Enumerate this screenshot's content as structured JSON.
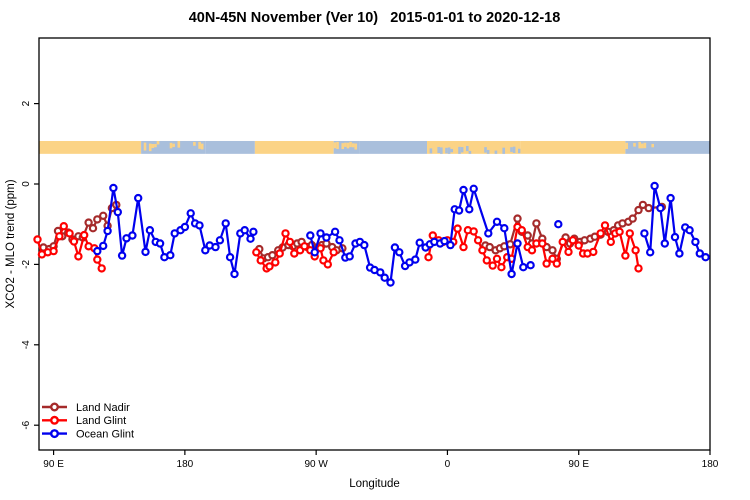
{
  "chart_data": {
    "type": "line",
    "title": "40N-45N November (Ver 10)   2015-01-01 to 2020-12-18",
    "xlabel": "Longitude",
    "ylabel": "XCO2 - MLO trend (ppm)",
    "background": "#ffffff",
    "axis_color": "#000000",
    "grid": false,
    "x_axis": {
      "note": "continuous east longitude, axis wraps: 90E to 180 to 90W to 0 to 90E to 180",
      "range": [
        80,
        540
      ],
      "ticks": [
        90,
        180,
        270,
        360,
        450,
        540
      ],
      "tick_labels": [
        "90 E",
        "180",
        "90 W",
        "0",
        "90 E",
        "180"
      ]
    },
    "y_axis": {
      "range": [
        -6.65,
        3.65
      ],
      "ticks": [
        2,
        0,
        -2,
        -4,
        -6
      ],
      "tick_labels": [
        "2",
        "0",
        "-2",
        "-4",
        "-6"
      ]
    },
    "map_band": {
      "description": "land/ocean strip for 40N-45N drawn near y=+0.9 ppm",
      "value_top": 1.07,
      "value_bottom": 0.75,
      "land_color": "#FBD386",
      "ocean_color": "#A9BFDC",
      "segments": [
        {
          "from": 80,
          "to": 150,
          "type": "land"
        },
        {
          "from": 150,
          "to": 194,
          "type": "coast"
        },
        {
          "from": 194,
          "to": 228,
          "type": "ocean"
        },
        {
          "from": 228,
          "to": 282,
          "type": "land"
        },
        {
          "from": 282,
          "to": 300,
          "type": "coast"
        },
        {
          "from": 300,
          "to": 346,
          "type": "ocean"
        },
        {
          "from": 346,
          "to": 410,
          "type": "coastland"
        },
        {
          "from": 410,
          "to": 482,
          "type": "land"
        },
        {
          "from": 482,
          "to": 504,
          "type": "coast"
        },
        {
          "from": 504,
          "to": 540,
          "type": "ocean"
        }
      ]
    },
    "legend": {
      "position": "bottom-left",
      "entries": [
        {
          "label": "Land Nadir",
          "color": "#A52A2A"
        },
        {
          "label": "Land Glint",
          "color": "#FF0000"
        },
        {
          "label": "Ocean Glint",
          "color": "#0000EE"
        }
      ]
    },
    "series": [
      {
        "name": "Land Nadir",
        "color": "#A52A2A",
        "marker": "open-circle",
        "segments": [
          [
            [
              83,
              -1.58
            ],
            [
              87,
              -1.62
            ],
            [
              90,
              -1.55
            ],
            [
              93,
              -1.17
            ],
            [
              96,
              -1.3
            ],
            [
              100,
              -1.21
            ],
            [
              103,
              -1.38
            ],
            [
              107,
              -1.3
            ],
            [
              110,
              -1.33
            ],
            [
              114,
              -0.96
            ],
            [
              117,
              -1.1
            ],
            [
              120,
              -0.88
            ],
            [
              124,
              -0.79
            ],
            [
              127,
              -1.04
            ],
            [
              130,
              -0.6
            ],
            [
              133,
              -0.52
            ]
          ],
          [
            [
              231,
              -1.62
            ],
            [
              234,
              -1.85
            ],
            [
              237,
              -1.82
            ],
            [
              240,
              -1.77
            ],
            [
              244,
              -1.65
            ],
            [
              247,
              -1.58
            ],
            [
              251,
              -1.52
            ],
            [
              254,
              -1.55
            ],
            [
              257,
              -1.48
            ],
            [
              260,
              -1.44
            ],
            [
              264,
              -1.57
            ],
            [
              267,
              -1.52
            ],
            [
              271,
              -1.58
            ],
            [
              274,
              -1.52
            ],
            [
              277,
              -1.48
            ],
            [
              281,
              -1.57
            ],
            [
              284,
              -1.65
            ],
            [
              288,
              -1.6
            ]
          ],
          [
            [
              386,
              -1.53
            ],
            [
              389,
              -1.57
            ],
            [
              393,
              -1.65
            ],
            [
              396,
              -1.6
            ],
            [
              399,
              -1.55
            ],
            [
              403,
              -1.5
            ],
            [
              408,
              -0.86
            ],
            [
              411,
              -1.19
            ],
            [
              415,
              -1.28
            ],
            [
              418,
              -1.48
            ],
            [
              421,
              -0.98
            ],
            [
              425,
              -1.36
            ],
            [
              428,
              -1.57
            ],
            [
              432,
              -1.65
            ],
            [
              435,
              -1.86
            ],
            [
              441,
              -1.33
            ],
            [
              444,
              -1.48
            ],
            [
              447,
              -1.36
            ],
            [
              451,
              -1.44
            ],
            [
              454,
              -1.4
            ],
            [
              458,
              -1.36
            ],
            [
              461,
              -1.31
            ],
            [
              465,
              -1.26
            ],
            [
              470,
              -1.19
            ],
            [
              474,
              -1.15
            ],
            [
              477,
              -1.03
            ],
            [
              480,
              -0.98
            ],
            [
              484,
              -0.94
            ],
            [
              487,
              -0.86
            ],
            [
              491,
              -0.65
            ],
            [
              494,
              -0.52
            ],
            [
              498,
              -0.6
            ],
            [
              507,
              -0.57
            ]
          ]
        ]
      },
      {
        "name": "Land Glint",
        "color": "#FF0000",
        "marker": "open-circle",
        "segments": [
          [
            [
              79,
              -1.38
            ],
            [
              82,
              -1.75
            ],
            [
              86,
              -1.7
            ],
            [
              90,
              -1.67
            ],
            [
              94,
              -1.3
            ],
            [
              97,
              -1.05
            ],
            [
              101,
              -1.23
            ],
            [
              104,
              -1.43
            ],
            [
              107,
              -1.8
            ],
            [
              111,
              -1.27
            ],
            [
              114,
              -1.55
            ],
            [
              118,
              -1.6
            ],
            [
              120,
              -1.88
            ],
            [
              123,
              -2.1
            ]
          ],
          [
            [
              229,
              -1.7
            ],
            [
              232,
              -1.9
            ],
            [
              236,
              -2.1
            ],
            [
              238,
              -2.05
            ],
            [
              242,
              -1.95
            ],
            [
              245,
              -1.73
            ],
            [
              249,
              -1.23
            ],
            [
              252,
              -1.44
            ],
            [
              255,
              -1.73
            ],
            [
              259,
              -1.65
            ],
            [
              262,
              -1.55
            ],
            [
              266,
              -1.65
            ],
            [
              269,
              -1.8
            ],
            [
              273,
              -1.6
            ],
            [
              275,
              -1.9
            ],
            [
              278,
              -2.0
            ],
            [
              282,
              -1.7
            ]
          ],
          [
            [
              347,
              -1.82
            ],
            [
              350,
              -1.28
            ],
            [
              354,
              -1.4
            ],
            [
              357,
              -1.44
            ],
            [
              360,
              -1.4
            ],
            [
              364,
              -1.44
            ],
            [
              367,
              -1.11
            ],
            [
              371,
              -1.57
            ],
            [
              374,
              -1.15
            ],
            [
              378,
              -1.18
            ],
            [
              381,
              -1.4
            ],
            [
              384,
              -1.65
            ],
            [
              387,
              -1.9
            ],
            [
              391,
              -2.03
            ],
            [
              394,
              -1.86
            ],
            [
              397,
              -2.07
            ],
            [
              401,
              -1.82
            ],
            [
              404,
              -1.86
            ],
            [
              408,
              -1.07
            ],
            [
              411,
              -1.15
            ],
            [
              415,
              -1.57
            ],
            [
              418,
              -1.65
            ],
            [
              421,
              -1.48
            ],
            [
              425,
              -1.48
            ],
            [
              428,
              -1.98
            ],
            [
              432,
              -1.86
            ],
            [
              435,
              -1.98
            ],
            [
              439,
              -1.44
            ],
            [
              443,
              -1.69
            ],
            [
              446,
              -1.4
            ],
            [
              450,
              -1.53
            ],
            [
              453,
              -1.73
            ],
            [
              456,
              -1.73
            ],
            [
              460,
              -1.69
            ],
            [
              465,
              -1.23
            ],
            [
              468,
              -1.03
            ],
            [
              472,
              -1.44
            ],
            [
              475,
              -1.23
            ],
            [
              478,
              -1.19
            ],
            [
              482,
              -1.78
            ],
            [
              485,
              -1.23
            ],
            [
              489,
              -1.65
            ],
            [
              491,
              -2.1
            ]
          ]
        ]
      },
      {
        "name": "Ocean Glint",
        "color": "#0000EE",
        "marker": "open-circle",
        "segments": [
          [
            [
              120,
              -1.67
            ],
            [
              124,
              -1.54
            ],
            [
              127,
              -1.17
            ],
            [
              131,
              -0.1
            ],
            [
              134,
              -0.7
            ],
            [
              137,
              -1.78
            ],
            [
              140,
              -1.35
            ],
            [
              144,
              -1.28
            ],
            [
              148,
              -0.35
            ],
            [
              153,
              -1.69
            ],
            [
              156,
              -1.15
            ],
            [
              160,
              -1.44
            ],
            [
              163,
              -1.48
            ],
            [
              166,
              -1.82
            ],
            [
              170,
              -1.77
            ],
            [
              173,
              -1.23
            ],
            [
              177,
              -1.15
            ],
            [
              180,
              -1.07
            ],
            [
              184,
              -0.73
            ],
            [
              187,
              -0.98
            ],
            [
              190,
              -1.03
            ],
            [
              194,
              -1.65
            ],
            [
              197,
              -1.53
            ],
            [
              201,
              -1.57
            ],
            [
              204,
              -1.4
            ],
            [
              208,
              -0.98
            ],
            [
              211,
              -1.82
            ],
            [
              214,
              -2.24
            ],
            [
              218,
              -1.23
            ],
            [
              221,
              -1.15
            ],
            [
              225,
              -1.36
            ],
            [
              227,
              -1.19
            ]
          ],
          [
            [
              266,
              -1.28
            ],
            [
              269,
              -1.7
            ],
            [
              273,
              -1.23
            ],
            [
              277,
              -1.33
            ],
            [
              283,
              -1.19
            ],
            [
              286,
              -1.4
            ],
            [
              290,
              -1.83
            ],
            [
              293,
              -1.8
            ],
            [
              297,
              -1.48
            ],
            [
              300,
              -1.44
            ],
            [
              303,
              -1.52
            ],
            [
              307,
              -2.08
            ],
            [
              310,
              -2.14
            ],
            [
              314,
              -2.2
            ],
            [
              317,
              -2.33
            ],
            [
              321,
              -2.45
            ],
            [
              324,
              -1.58
            ],
            [
              327,
              -1.7
            ],
            [
              331,
              -2.04
            ],
            [
              334,
              -1.95
            ],
            [
              338,
              -1.88
            ],
            [
              341,
              -1.46
            ],
            [
              345,
              -1.58
            ],
            [
              348,
              -1.5
            ],
            [
              351,
              -1.44
            ],
            [
              355,
              -1.48
            ],
            [
              358,
              -1.42
            ],
            [
              362,
              -1.52
            ],
            [
              365,
              -0.63
            ],
            [
              368,
              -0.66
            ],
            [
              371,
              -0.15
            ],
            [
              375,
              -0.63
            ],
            [
              378,
              -0.12
            ],
            [
              388,
              -1.23
            ],
            [
              394,
              -0.94
            ],
            [
              399,
              -1.1
            ],
            [
              404,
              -2.24
            ],
            [
              408,
              -1.48
            ],
            [
              412,
              -2.07
            ],
            [
              417,
              -2.02
            ]
          ],
          [
            [
              436,
              -1.0
            ]
          ],
          [
            [
              495,
              -1.23
            ],
            [
              499,
              -1.7
            ],
            [
              502,
              -0.05
            ],
            [
              506,
              -0.6
            ],
            [
              509,
              -1.48
            ],
            [
              513,
              -0.35
            ],
            [
              516,
              -1.32
            ],
            [
              519,
              -1.73
            ],
            [
              523,
              -1.08
            ],
            [
              526,
              -1.15
            ],
            [
              530,
              -1.44
            ],
            [
              533,
              -1.73
            ],
            [
              537,
              -1.82
            ]
          ]
        ]
      }
    ]
  }
}
